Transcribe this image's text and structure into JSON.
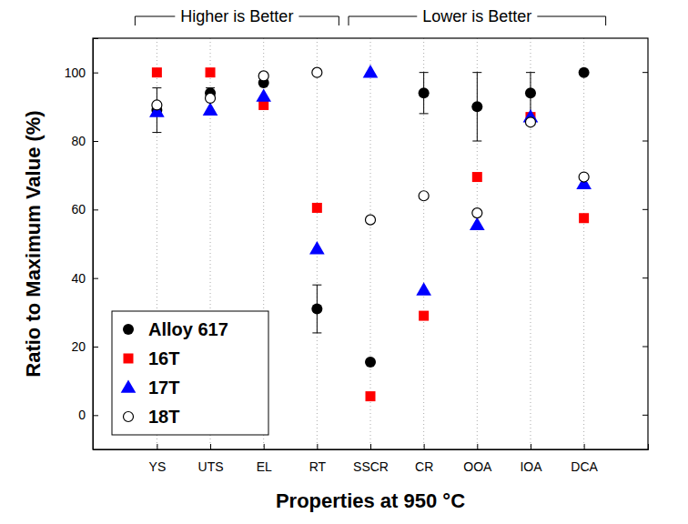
{
  "chart_data": {
    "type": "scatter",
    "x_label": "Properties at 950 °C",
    "y_label": "Ratio to Maximum Value (%)",
    "categories": [
      "YS",
      "UTS",
      "EL",
      "RT",
      "SSCR",
      "CR",
      "OOA",
      "IOA",
      "DCA"
    ],
    "series": [
      {
        "name": "Alloy 617",
        "color": "#000000",
        "marker": "circle",
        "values": [
          89,
          94,
          97,
          31,
          15.5,
          94,
          90,
          94,
          100
        ],
        "errors": [
          6.5,
          1.5,
          null,
          7,
          null,
          6,
          10,
          6,
          null
        ]
      },
      {
        "name": "16T",
        "color": "#ff0000",
        "marker": "square",
        "values": [
          100,
          100,
          90.5,
          60.5,
          5.5,
          29,
          69.5,
          87,
          57.5
        ]
      },
      {
        "name": "17T",
        "color": "#0000ff",
        "marker": "triangle",
        "values": [
          88.5,
          89,
          93,
          48.5,
          100,
          36.5,
          55.5,
          87,
          67.5
        ]
      },
      {
        "name": "18T",
        "color": "#000000",
        "marker": "circle-open",
        "values": [
          90.5,
          92.5,
          99,
          100,
          57,
          64,
          59,
          85.5,
          69.5
        ]
      }
    ],
    "ylim": [
      -10,
      110
    ],
    "yticks": [
      0,
      20,
      40,
      60,
      80,
      100
    ],
    "grid": true,
    "legend": "lower left",
    "annotations": [
      {
        "text": "Higher is Better",
        "span": [
          "YS",
          "RT"
        ]
      },
      {
        "text": "Lower is Better",
        "span": [
          "SSCR",
          "DCA"
        ]
      }
    ]
  }
}
